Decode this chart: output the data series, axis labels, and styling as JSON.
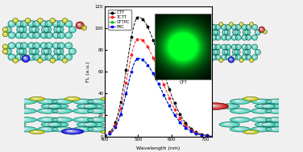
{
  "background_color": "#f0f0f0",
  "spectrum": {
    "wavelength_min": 400,
    "wavelength_max": 720,
    "peak_wavelength": 500,
    "ylim": [
      0,
      120
    ],
    "yticks": [
      0,
      20,
      40,
      60,
      80,
      100,
      120
    ],
    "xlabel": "Wavelength (nm)",
    "ylabel": "FL (a.u.)",
    "series": [
      {
        "label": "CTT",
        "color": "#000000",
        "linestyle": "--",
        "marker": "o",
        "markersize": 1.8,
        "peak_intensity": 110,
        "sigma_l": 33,
        "sigma_r": 68
      },
      {
        "label": "TCTT",
        "color": "#ff2222",
        "linestyle": "--",
        "marker": "o",
        "markersize": 1.8,
        "peak_intensity": 90,
        "sigma_l": 33,
        "sigma_r": 68
      },
      {
        "label": "CFTPC",
        "color": "#00bb00",
        "linestyle": "--",
        "marker": "^",
        "markersize": 1.8,
        "peak_intensity": 72,
        "sigma_l": 33,
        "sigma_r": 68
      },
      {
        "label": "PXC",
        "color": "#0000ff",
        "linestyle": "--",
        "marker": "s",
        "markersize": 1.8,
        "peak_intensity": 72,
        "sigma_l": 33,
        "sigma_r": 68
      }
    ]
  },
  "inset_label": "CFT",
  "atom_cyan": "#3dd9c0",
  "atom_yellow": "#d4d400",
  "atom_blue": "#1010ee",
  "atom_red": "#cc1111",
  "bond_color": "#606060"
}
